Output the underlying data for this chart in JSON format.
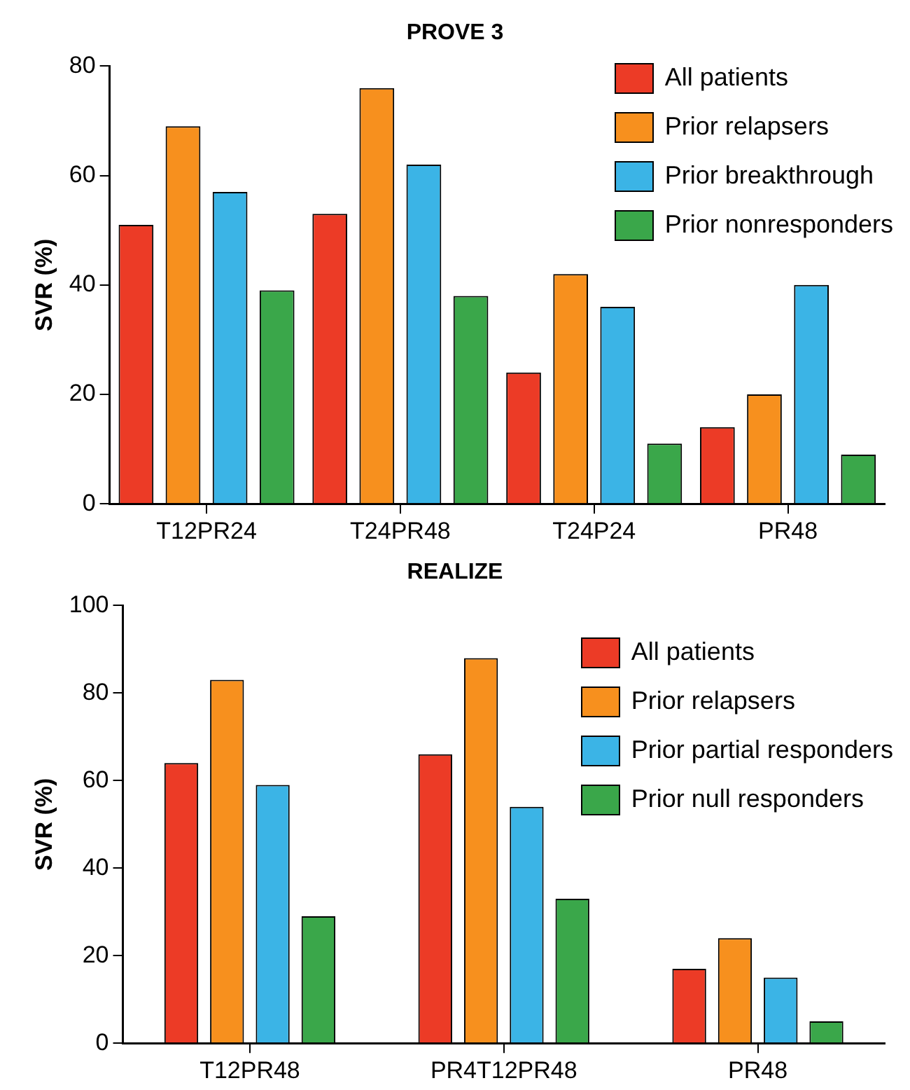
{
  "chart_data": [
    {
      "type": "bar",
      "title": "PROVE 3",
      "ylabel": "SVR (%)",
      "categories": [
        "T12PR24",
        "T24PR48",
        "T24P24",
        "PR48"
      ],
      "series": [
        {
          "name": "All patients",
          "color": "#ec3b26",
          "values": [
            51,
            53,
            24,
            14
          ]
        },
        {
          "name": "Prior relapsers",
          "color": "#f7901e",
          "values": [
            69,
            76,
            42,
            20
          ]
        },
        {
          "name": "Prior breakthrough",
          "color": "#3bb4e6",
          "values": [
            57,
            62,
            36,
            40
          ]
        },
        {
          "name": "Prior nonresponders",
          "color": "#3aa74a",
          "values": [
            39,
            38,
            11,
            9
          ]
        }
      ],
      "ylim": [
        0,
        80
      ],
      "yticks": [
        0,
        20,
        40,
        60,
        80
      ],
      "grid": false,
      "legend": "top right"
    },
    {
      "type": "bar",
      "title": "REALIZE",
      "ylabel": "SVR (%)",
      "categories": [
        "T12PR48",
        "PR4T12PR48",
        "PR48"
      ],
      "series": [
        {
          "name": "All patients",
          "color": "#ec3b26",
          "values": [
            64,
            66,
            17
          ]
        },
        {
          "name": "Prior relapsers",
          "color": "#f7901e",
          "values": [
            83,
            88,
            24
          ]
        },
        {
          "name": "Prior partial responders",
          "color": "#3bb4e6",
          "values": [
            59,
            54,
            15
          ]
        },
        {
          "name": "Prior null responders",
          "color": "#3aa74a",
          "values": [
            29,
            33,
            5
          ]
        }
      ],
      "ylim": [
        0,
        100
      ],
      "yticks": [
        0,
        20,
        40,
        60,
        80,
        100
      ],
      "grid": false,
      "legend": "top right"
    }
  ]
}
